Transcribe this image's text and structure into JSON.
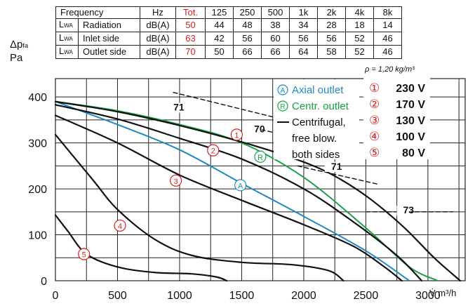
{
  "table": {
    "header": {
      "label": "Frequency",
      "unit": "Hz",
      "total": "Tot.",
      "freqs": [
        "125",
        "250",
        "500",
        "1k",
        "2k",
        "4k",
        "8k"
      ]
    },
    "rows": [
      {
        "symbol": "L",
        "symbol_sub": "WA",
        "label": "Radiation",
        "unit": "dB(A)",
        "total": "50",
        "values": [
          "44",
          "48",
          "38",
          "34",
          "28",
          "18",
          "14"
        ]
      },
      {
        "symbol": "L",
        "symbol_sub": "WA",
        "label": "Inlet side",
        "unit": "dB(A)",
        "total": "63",
        "values": [
          "42",
          "56",
          "60",
          "56",
          "56",
          "52",
          "46"
        ]
      },
      {
        "symbol": "L",
        "symbol_sub": "WA",
        "label": "Outlet side",
        "unit": "dB(A)",
        "total": "70",
        "values": [
          "50",
          "66",
          "66",
          "64",
          "58",
          "52",
          "46"
        ]
      }
    ]
  },
  "density_note": "ρ = 1,20 kg/m³",
  "colors": {
    "axial": "#1f8ac0",
    "centr": "#1aa049",
    "black": "#111111",
    "red": "#d62020",
    "grid": "#222222"
  },
  "chart_data": {
    "type": "line",
    "ylabel_main": "Δp",
    "ylabel_sub": "fa",
    "ylabel_unit": "Pa",
    "xlabel_symbol": "V̇",
    "xlabel_unit": "m³/h",
    "xlim": [
      0,
      3300
    ],
    "ylim": [
      0,
      440
    ],
    "x_ticks": [
      0,
      500,
      1000,
      1500,
      2000,
      2500,
      3000
    ],
    "y_ticks": [
      0,
      100,
      200,
      300,
      400
    ],
    "grid": true,
    "series": [
      {
        "id": "axial",
        "color": "#1f8ac0",
        "width": 2.0,
        "points": [
          [
            0,
            390
          ],
          [
            500,
            340
          ],
          [
            1000,
            285
          ],
          [
            1500,
            212
          ],
          [
            2000,
            140
          ],
          [
            2500,
            65
          ],
          [
            2850,
            0
          ]
        ],
        "marker": {
          "symbol": "A",
          "x": 1490,
          "y": 208
        }
      },
      {
        "id": "centr",
        "color": "#1aa049",
        "width": 2.0,
        "points": [
          [
            0,
            390
          ],
          [
            500,
            370
          ],
          [
            1000,
            340
          ],
          [
            1500,
            300
          ],
          [
            2000,
            225
          ],
          [
            2500,
            115
          ],
          [
            2850,
            30
          ],
          [
            3080,
            0
          ]
        ],
        "marker": {
          "symbol": "R",
          "x": 1650,
          "y": 270
        }
      },
      {
        "id": "c1",
        "color": "#111111",
        "width": 2.2,
        "points": [
          [
            0,
            390
          ],
          [
            500,
            368
          ],
          [
            1000,
            338
          ],
          [
            1500,
            302
          ],
          [
            1900,
            268
          ],
          [
            2200,
            235
          ],
          [
            2500,
            185
          ],
          [
            2800,
            118
          ],
          [
            3050,
            50
          ],
          [
            3260,
            0
          ]
        ],
        "marker": {
          "symbol": "1",
          "x": 1460,
          "y": 318
        }
      },
      {
        "id": "c2",
        "color": "#111111",
        "width": 2.2,
        "points": [
          [
            0,
            383
          ],
          [
            500,
            352
          ],
          [
            1000,
            310
          ],
          [
            1500,
            265
          ],
          [
            2000,
            200
          ],
          [
            2400,
            128
          ],
          [
            2750,
            55
          ],
          [
            2950,
            0
          ]
        ],
        "marker": {
          "symbol": "2",
          "x": 1270,
          "y": 284
        }
      },
      {
        "id": "c3",
        "color": "#111111",
        "width": 2.2,
        "points": [
          [
            0,
            360
          ],
          [
            500,
            300
          ],
          [
            1000,
            230
          ],
          [
            1500,
            175
          ],
          [
            2000,
            122
          ],
          [
            2400,
            75
          ],
          [
            2650,
            30
          ],
          [
            2790,
            0
          ]
        ],
        "marker": {
          "symbol": "3",
          "x": 970,
          "y": 218
        }
      },
      {
        "id": "c4",
        "color": "#111111",
        "width": 2.2,
        "points": [
          [
            0,
            318
          ],
          [
            300,
            220
          ],
          [
            500,
            155
          ],
          [
            800,
            90
          ],
          [
            1100,
            55
          ],
          [
            1500,
            40
          ],
          [
            1900,
            35
          ],
          [
            2200,
            22
          ],
          [
            2320,
            0
          ]
        ],
        "marker": {
          "symbol": "4",
          "x": 520,
          "y": 120
        }
      },
      {
        "id": "c5",
        "color": "#111111",
        "width": 2.2,
        "points": [
          [
            0,
            143
          ],
          [
            100,
            108
          ],
          [
            250,
            58
          ],
          [
            500,
            30
          ],
          [
            800,
            18
          ],
          [
            1100,
            15
          ],
          [
            1300,
            8
          ],
          [
            1380,
            0
          ]
        ],
        "marker": {
          "symbol": "5",
          "x": 230,
          "y": 58
        }
      },
      {
        "id": "d71",
        "color": "#111111",
        "width": 1.4,
        "dashed": true,
        "points": [
          [
            950,
            410
          ],
          [
            2150,
            330
          ]
        ]
      },
      {
        "id": "d70",
        "color": "#111111",
        "width": 1.4,
        "dashed": true,
        "points": [
          [
            1600,
            332
          ],
          [
            2150,
            300
          ]
        ]
      },
      {
        "id": "d71b",
        "color": "#111111",
        "width": 1.4,
        "dashed": true,
        "points": [
          [
            1950,
            250
          ],
          [
            2600,
            210
          ]
        ]
      },
      {
        "id": "d73",
        "color": "#111111",
        "width": 1.4,
        "dashed": true,
        "points": [
          [
            2500,
            150
          ],
          [
            3200,
            150
          ]
        ]
      }
    ],
    "curve_labels": [
      {
        "text": "71",
        "x": 950,
        "y": 372
      },
      {
        "text": "70",
        "x": 1600,
        "y": 325
      },
      {
        "text": "71",
        "x": 2220,
        "y": 243
      },
      {
        "text": "73",
        "x": 2800,
        "y": 148
      }
    ],
    "legend": [
      {
        "symbol": "A",
        "text": "Axial outlet",
        "color": "#1f8ac0"
      },
      {
        "symbol": "R",
        "text": "Centr. outlet",
        "color": "#1aa049"
      },
      {
        "symbol": "—",
        "text": "Centrifugal,",
        "color": "#111111"
      },
      {
        "symbol": "",
        "text": "free blow.",
        "color": "#111111"
      },
      {
        "symbol": "",
        "text": "both sides",
        "color": "#111111"
      }
    ],
    "speed_legend": [
      {
        "symbol": "①",
        "text": "230 V"
      },
      {
        "symbol": "②",
        "text": "170 V"
      },
      {
        "symbol": "③",
        "text": "130 V"
      },
      {
        "symbol": "④",
        "text": "100 V"
      },
      {
        "symbol": "⑤",
        "text": "80 V"
      }
    ]
  }
}
